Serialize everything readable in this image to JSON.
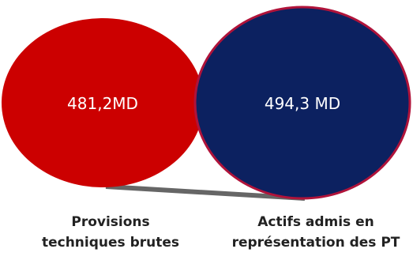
{
  "colors": {
    "left_fill": "#cc0000",
    "right_fill": "#0c2160",
    "right_stroke": "#b0133a",
    "connector": "#666666",
    "value_text": "#ffffff",
    "caption_text": "#222222"
  },
  "left": {
    "value": "481,2MD",
    "caption_line1": "Provisions",
    "caption_line2": "techniques brutes"
  },
  "right": {
    "value": "494,3 MD",
    "caption_line1": "Actifs admis en",
    "caption_line2": "représentation des PT"
  }
}
